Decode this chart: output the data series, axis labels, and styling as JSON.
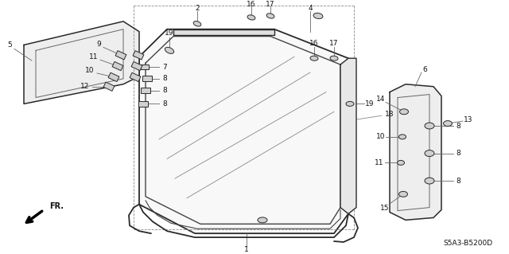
{
  "bg_color": "#ffffff",
  "line_color": "#2a2a2a",
  "diagram_code": "S5A3-B5200D",
  "figsize": [
    6.4,
    3.19
  ],
  "dpi": 100
}
